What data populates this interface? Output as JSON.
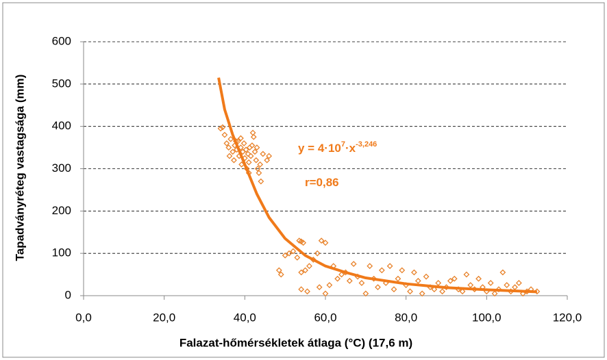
{
  "chart_data": {
    "type": "scatter",
    "xlabel": "Falazat-hőmérsékletek átlaga (°C) (17,6 m)",
    "ylabel": "Tapadványréteg vastagsága (mm)",
    "xlim": [
      0,
      120
    ],
    "ylim": [
      0,
      600
    ],
    "xticks": [
      {
        "value": 0,
        "label": "0,0"
      },
      {
        "value": 20,
        "label": "20,0"
      },
      {
        "value": 40,
        "label": "40,0"
      },
      {
        "value": 60,
        "label": "60,0"
      },
      {
        "value": 80,
        "label": "80,0"
      },
      {
        "value": 100,
        "label": "100,0"
      },
      {
        "value": 120,
        "label": "120,0"
      }
    ],
    "yticks": [
      0,
      100,
      200,
      300,
      400,
      500,
      600
    ],
    "grid": true,
    "series": [
      {
        "type": "scatter",
        "color": "#e8822a",
        "x": [
          34,
          34.5,
          35,
          35.5,
          36,
          36.2,
          36.5,
          37,
          37.3,
          37.5,
          38,
          38.3,
          38.6,
          39,
          39.2,
          39.5,
          39.8,
          40,
          40.3,
          40.5,
          40.8,
          41,
          41.2,
          41.5,
          41.8,
          42,
          42.2,
          42.5,
          42.8,
          43,
          43.2,
          43.5,
          43.8,
          44,
          44.5,
          45.5,
          46,
          37.8,
          39,
          41,
          48.5,
          49,
          50,
          51,
          52,
          53,
          53.5,
          54,
          54.5,
          54,
          55,
          54,
          55.5,
          56,
          57,
          58,
          59,
          60,
          58.5,
          60,
          61,
          62,
          63,
          64,
          65,
          66,
          67,
          68,
          69,
          70,
          71,
          72,
          73,
          74,
          75,
          76,
          77,
          78,
          79,
          80,
          81,
          82,
          83,
          84,
          85,
          86,
          87,
          88,
          89,
          90,
          91,
          92,
          93,
          94,
          95,
          96,
          97,
          98,
          99,
          100,
          101,
          102,
          103,
          104,
          105,
          106,
          107,
          108,
          109,
          110,
          111,
          112.5
        ],
        "values": [
          395,
          398,
          380,
          360,
          350,
          330,
          370,
          340,
          320,
          355,
          345,
          365,
          330,
          350,
          310,
          340,
          360,
          325,
          345,
          300,
          335,
          315,
          350,
          330,
          355,
          385,
          375,
          340,
          320,
          350,
          300,
          290,
          310,
          270,
          335,
          320,
          330,
          365,
          372,
          290,
          60,
          50,
          95,
          100,
          105,
          90,
          130,
          128,
          125,
          55,
          60,
          15,
          10,
          70,
          85,
          100,
          130,
          125,
          20,
          5,
          25,
          70,
          40,
          50,
          55,
          35,
          75,
          45,
          30,
          5,
          70,
          40,
          20,
          60,
          30,
          70,
          15,
          40,
          60,
          25,
          10,
          55,
          35,
          5,
          45,
          20,
          15,
          30,
          10,
          20,
          35,
          40,
          15,
          10,
          50,
          25,
          15,
          40,
          20,
          10,
          30,
          5,
          15,
          55,
          25,
          10,
          20,
          30,
          5,
          10,
          15,
          10
        ]
      },
      {
        "type": "line",
        "color": "#f07a1a",
        "x": [
          33.5,
          35,
          37,
          40,
          43,
          46,
          50,
          55,
          60,
          65,
          70,
          80,
          90,
          100,
          112.5
        ],
        "values": [
          515,
          440,
          380,
          310,
          240,
          185,
          135,
          95,
          70,
          55,
          42,
          28,
          19,
          14,
          9
        ]
      }
    ],
    "annotations": [
      {
        "parts": [
          {
            "text": "y = 4·10"
          },
          {
            "text": "7",
            "sup": true
          },
          {
            "text": "·x"
          },
          {
            "text": "-3,246",
            "sup": true
          }
        ]
      },
      {
        "parts": [
          {
            "text": "r=0,86"
          }
        ]
      }
    ]
  }
}
